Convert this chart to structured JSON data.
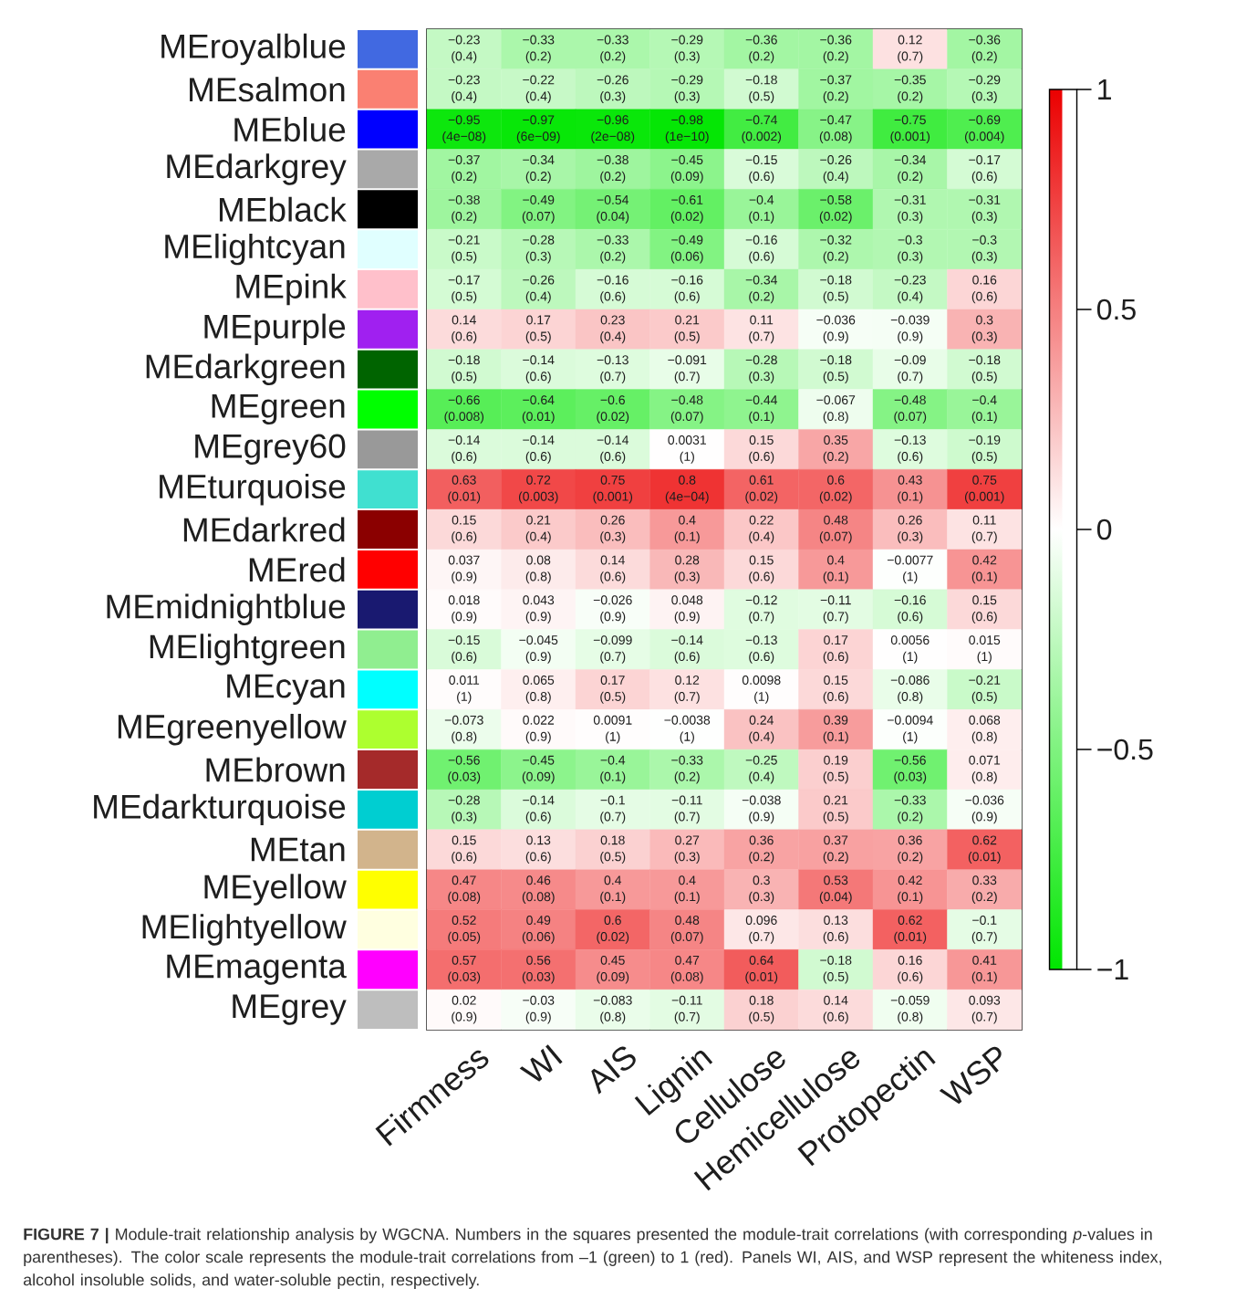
{
  "chart_data": {
    "type": "heatmap",
    "categories": [
      "Firmness",
      "WI",
      "AIS",
      "Lignin",
      "Cellulose",
      "Hemicellulose",
      "Protopectin",
      "WSP"
    ],
    "y_categories": [
      "MEroyalblue",
      "MEsalmon",
      "MEblue",
      "MEdarkgrey",
      "MEblack",
      "MElightcyan",
      "MEpink",
      "MEpurple",
      "MEdarkgreen",
      "MEgreen",
      "MEgrey60",
      "MEturquoise",
      "MEdarkred",
      "MEred",
      "MEmidnightblue",
      "MElightgreen",
      "MEcyan",
      "MEgreenyellow",
      "MEbrown",
      "MEdarkturquoise",
      "MEtan",
      "MEyellow",
      "MElightyellow",
      "MEmagenta",
      "MEgrey"
    ],
    "cells": [
      [
        -0.23,
        -0.33,
        -0.33,
        -0.29,
        -0.36,
        -0.36,
        0.12,
        -0.36
      ],
      [
        -0.23,
        -0.22,
        -0.26,
        -0.29,
        -0.18,
        -0.37,
        -0.35,
        -0.29
      ],
      [
        -0.95,
        -0.97,
        -0.96,
        -0.98,
        -0.74,
        -0.47,
        -0.75,
        -0.69
      ],
      [
        -0.37,
        -0.34,
        -0.38,
        -0.45,
        -0.15,
        -0.26,
        -0.34,
        -0.17
      ],
      [
        -0.38,
        -0.49,
        -0.54,
        -0.61,
        -0.4,
        -0.58,
        -0.31,
        -0.31
      ],
      [
        -0.21,
        -0.28,
        -0.33,
        -0.49,
        -0.16,
        -0.32,
        -0.3,
        -0.3
      ],
      [
        -0.17,
        -0.26,
        -0.16,
        -0.16,
        -0.34,
        -0.18,
        -0.23,
        0.16
      ],
      [
        0.14,
        0.17,
        0.23,
        0.21,
        0.11,
        -0.036,
        -0.039,
        0.3
      ],
      [
        -0.18,
        -0.14,
        -0.13,
        -0.091,
        -0.28,
        -0.18,
        -0.09,
        -0.18
      ],
      [
        -0.66,
        -0.64,
        -0.6,
        -0.48,
        -0.44,
        -0.067,
        -0.48,
        -0.4
      ],
      [
        -0.14,
        -0.14,
        -0.14,
        0.0031,
        0.15,
        0.35,
        -0.13,
        -0.19
      ],
      [
        0.63,
        0.72,
        0.75,
        0.8,
        0.61,
        0.6,
        0.43,
        0.75
      ],
      [
        0.15,
        0.21,
        0.26,
        0.4,
        0.22,
        0.48,
        0.26,
        0.11
      ],
      [
        0.037,
        0.08,
        0.14,
        0.28,
        0.15,
        0.4,
        -0.0077,
        0.42
      ],
      [
        0.018,
        0.043,
        -0.026,
        0.048,
        -0.12,
        -0.11,
        -0.16,
        0.15
      ],
      [
        -0.15,
        -0.045,
        -0.099,
        -0.14,
        -0.13,
        0.17,
        0.0056,
        0.015
      ],
      [
        0.011,
        0.065,
        0.17,
        0.12,
        0.0098,
        0.15,
        -0.086,
        -0.21
      ],
      [
        -0.073,
        0.022,
        0.0091,
        -0.0038,
        0.24,
        0.39,
        -0.0094,
        0.068
      ],
      [
        -0.56,
        -0.45,
        -0.4,
        -0.33,
        -0.25,
        0.19,
        -0.56,
        0.071
      ],
      [
        -0.28,
        -0.14,
        -0.1,
        -0.11,
        -0.038,
        0.21,
        -0.33,
        -0.036
      ],
      [
        0.15,
        0.13,
        0.18,
        0.27,
        0.36,
        0.37,
        0.36,
        0.62
      ],
      [
        0.47,
        0.46,
        0.4,
        0.4,
        0.3,
        0.53,
        0.42,
        0.33
      ],
      [
        0.52,
        0.49,
        0.6,
        0.48,
        0.096,
        0.13,
        0.62,
        -0.1
      ],
      [
        0.57,
        0.56,
        0.45,
        0.47,
        0.64,
        -0.18,
        0.16,
        0.41
      ],
      [
        0.02,
        -0.03,
        -0.083,
        -0.11,
        0.18,
        0.14,
        -0.059,
        0.093
      ]
    ],
    "cell_labels": [
      [
        "−0.23 (0.4)",
        "−0.33 (0.2)",
        "−0.33 (0.2)",
        "−0.29 (0.3)",
        "−0.36 (0.2)",
        "−0.36 (0.2)",
        "0.12 (0.7)",
        "−0.36 (0.2)"
      ],
      [
        "−0.23 (0.4)",
        "−0.22 (0.4)",
        "−0.26 (0.3)",
        "−0.29 (0.3)",
        "−0.18 (0.5)",
        "−0.37 (0.2)",
        "−0.35 (0.2)",
        "−0.29 (0.3)"
      ],
      [
        "−0.95 (4e−08)",
        "−0.97 (6e−09)",
        "−0.96 (2e−08)",
        "−0.98 (1e−10)",
        "−0.74 (0.002)",
        "−0.47 (0.08)",
        "−0.75 (0.001)",
        "−0.69 (0.004)"
      ],
      [
        "−0.37 (0.2)",
        "−0.34 (0.2)",
        "−0.38 (0.2)",
        "−0.45 (0.09)",
        "−0.15 (0.6)",
        "−0.26 (0.4)",
        "−0.34 (0.2)",
        "−0.17 (0.6)"
      ],
      [
        "−0.38 (0.2)",
        "−0.49 (0.07)",
        "−0.54 (0.04)",
        "−0.61 (0.02)",
        "−0.4 (0.1)",
        "−0.58 (0.02)",
        "−0.31 (0.3)",
        "−0.31 (0.3)"
      ],
      [
        "−0.21 (0.5)",
        "−0.28 (0.3)",
        "−0.33 (0.2)",
        "−0.49 (0.06)",
        "−0.16 (0.6)",
        "−0.32 (0.2)",
        "−0.3 (0.3)",
        "−0.3 (0.3)"
      ],
      [
        "−0.17 (0.5)",
        "−0.26 (0.4)",
        "−0.16 (0.6)",
        "−0.16 (0.6)",
        "−0.34 (0.2)",
        "−0.18 (0.5)",
        "−0.23 (0.4)",
        "0.16 (0.6)"
      ],
      [
        "0.14 (0.6)",
        "0.17 (0.5)",
        "0.23 (0.4)",
        "0.21 (0.5)",
        "0.11 (0.7)",
        "−0.036 (0.9)",
        "−0.039 (0.9)",
        "0.3 (0.3)"
      ],
      [
        "−0.18 (0.5)",
        "−0.14 (0.6)",
        "−0.13 (0.7)",
        "−0.091 (0.7)",
        "−0.28 (0.3)",
        "−0.18 (0.5)",
        "−0.09 (0.7)",
        "−0.18 (0.5)"
      ],
      [
        "−0.66 (0.008)",
        "−0.64 (0.01)",
        "−0.6 (0.02)",
        "−0.48 (0.07)",
        "−0.44 (0.1)",
        "−0.067 (0.8)",
        "−0.48 (0.07)",
        "−0.4 (0.1)"
      ],
      [
        "−0.14 (0.6)",
        "−0.14 (0.6)",
        "−0.14 (0.6)",
        "0.0031 (1)",
        "0.15 (0.6)",
        "0.35 (0.2)",
        "−0.13 (0.6)",
        "−0.19 (0.5)"
      ],
      [
        "0.63 (0.01)",
        "0.72 (0.003)",
        "0.75 (0.001)",
        "0.8 (4e−04)",
        "0.61 (0.02)",
        "0.6 (0.02)",
        "0.43 (0.1)",
        "0.75 (0.001)"
      ],
      [
        "0.15 (0.6)",
        "0.21 (0.4)",
        "0.26 (0.3)",
        "0.4 (0.1)",
        "0.22 (0.4)",
        "0.48 (0.07)",
        "0.26 (0.3)",
        "0.11 (0.7)"
      ],
      [
        "0.037 (0.9)",
        "0.08 (0.8)",
        "0.14 (0.6)",
        "0.28 (0.3)",
        "0.15 (0.6)",
        "0.4 (0.1)",
        "−0.0077 (1)",
        "0.42 (0.1)"
      ],
      [
        "0.018 (0.9)",
        "0.043 (0.9)",
        "−0.026 (0.9)",
        "0.048 (0.9)",
        "−0.12 (0.7)",
        "−0.11 (0.7)",
        "−0.16 (0.6)",
        "0.15 (0.6)"
      ],
      [
        "−0.15 (0.6)",
        "−0.045 (0.9)",
        "−0.099 (0.7)",
        "−0.14 (0.6)",
        "−0.13 (0.6)",
        "0.17 (0.6)",
        "0.0056 (1)",
        "0.015 (1)"
      ],
      [
        "0.011 (1)",
        "0.065 (0.8)",
        "0.17 (0.5)",
        "0.12 (0.7)",
        "0.0098 (1)",
        "0.15 (0.6)",
        "−0.086 (0.8)",
        "−0.21 (0.5)"
      ],
      [
        "−0.073 (0.8)",
        "0.022 (0.9)",
        "0.0091 (1)",
        "−0.0038 (1)",
        "0.24 (0.4)",
        "0.39 (0.1)",
        "−0.0094 (1)",
        "0.068 (0.8)"
      ],
      [
        "−0.56 (0.03)",
        "−0.45 (0.09)",
        "−0.4 (0.1)",
        "−0.33 (0.2)",
        "−0.25 (0.4)",
        "0.19 (0.5)",
        "−0.56 (0.03)",
        "0.071 (0.8)"
      ],
      [
        "−0.28 (0.3)",
        "−0.14 (0.6)",
        "−0.1 (0.7)",
        "−0.11 (0.7)",
        "−0.038 (0.9)",
        "0.21 (0.5)",
        "−0.33 (0.2)",
        "−0.036 (0.9)"
      ],
      [
        "0.15 (0.6)",
        "0.13 (0.6)",
        "0.18 (0.5)",
        "0.27 (0.3)",
        "0.36 (0.2)",
        "0.37 (0.2)",
        "0.36 (0.2)",
        "0.62 (0.01)"
      ],
      [
        "0.47 (0.08)",
        "0.46 (0.08)",
        "0.4 (0.1)",
        "0.4 (0.1)",
        "0.3 (0.3)",
        "0.53 (0.04)",
        "0.42 (0.1)",
        "0.33 (0.2)"
      ],
      [
        "0.52 (0.05)",
        "0.49 (0.06)",
        "0.6 (0.02)",
        "0.48 (0.07)",
        "0.096 (0.7)",
        "0.13 (0.6)",
        "0.62 (0.01)",
        "−0.1 (0.7)"
      ],
      [
        "0.57 (0.03)",
        "0.56 (0.03)",
        "0.45 (0.09)",
        "0.47 (0.08)",
        "0.64 (0.01)",
        "−0.18 (0.5)",
        "0.16 (0.6)",
        "0.41 (0.1)"
      ],
      [
        "0.02 (0.9)",
        "−0.03 (0.9)",
        "−0.083 (0.8)",
        "−0.11 (0.7)",
        "0.18 (0.5)",
        "0.14 (0.6)",
        "−0.059 (0.8)",
        "0.093 (0.7)"
      ]
    ],
    "clim": [
      -1,
      1
    ],
    "cticks": [
      {
        "value": -1,
        "label": "−1"
      },
      {
        "value": -0.5,
        "label": "−0.5"
      },
      0,
      0.5,
      1
    ],
    "annotations": [
      "**FIGURE 7 |** Module-trait relationship analysis by WGCNA. Numbers in the squares presented the module-trait correlations (with corresponding *p*-values in parentheses). The color scale represents the module-trait correlations from –1 (green) to 1 (red). Panels WI, AIS, and WSP represent the whiteness index, alcohol insoluble solids, and water-soluble pectin, respectively."
    ]
  }
}
